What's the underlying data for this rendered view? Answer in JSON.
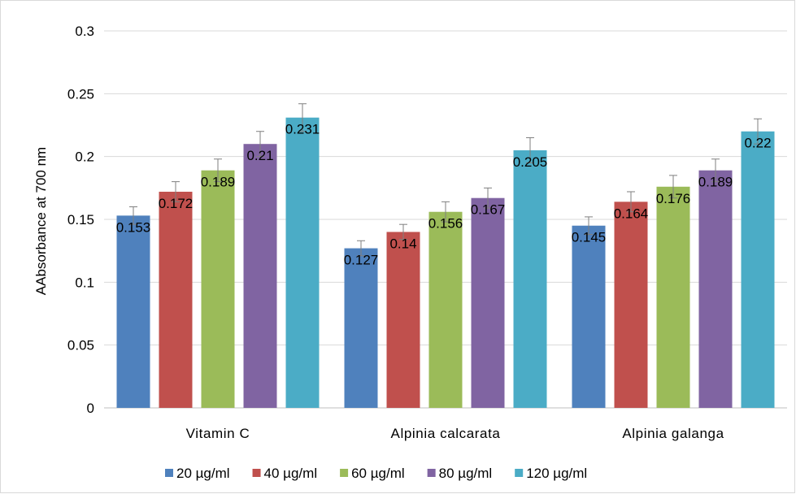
{
  "chart_data": {
    "type": "bar",
    "title": "",
    "xlabel": "",
    "ylabel": "AAbsorbance at 700 nm",
    "ylim": [
      0,
      0.3
    ],
    "yticks": [
      "0",
      "0.05",
      "0.1",
      "0.15",
      "0.2",
      "0.25",
      "0.3"
    ],
    "grid": true,
    "legend_position": "bottom",
    "categories": [
      "Vitamin C",
      "Alpinia calcarata",
      "Alpinia galanga"
    ],
    "series": [
      {
        "name": "20 µg/ml",
        "color": "#4f81bd",
        "values": [
          0.153,
          0.127,
          0.145
        ],
        "labels": [
          "0.153",
          "0.127",
          "0.145"
        ],
        "errors": [
          0.007,
          0.006,
          0.007
        ]
      },
      {
        "name": "40 µg/ml",
        "color": "#c0504d",
        "values": [
          0.172,
          0.14,
          0.164
        ],
        "labels": [
          "0.172",
          "0.14",
          "0.164"
        ],
        "errors": [
          0.008,
          0.006,
          0.008
        ]
      },
      {
        "name": "60 µg/ml",
        "color": "#9bbb59",
        "values": [
          0.189,
          0.156,
          0.176
        ],
        "labels": [
          "0.189",
          "0.156",
          "0.176"
        ],
        "errors": [
          0.009,
          0.008,
          0.009
        ]
      },
      {
        "name": "80 µg/ml",
        "color": "#8064a2",
        "values": [
          0.21,
          0.167,
          0.189
        ],
        "labels": [
          "0.21",
          "0.167",
          "0.189"
        ],
        "errors": [
          0.01,
          0.008,
          0.009
        ]
      },
      {
        "name": "120 µg/ml",
        "color": "#4bacc6",
        "values": [
          0.231,
          0.205,
          0.22
        ],
        "labels": [
          "0.231",
          "0.205",
          "0.22"
        ],
        "errors": [
          0.011,
          0.01,
          0.01
        ]
      }
    ]
  }
}
